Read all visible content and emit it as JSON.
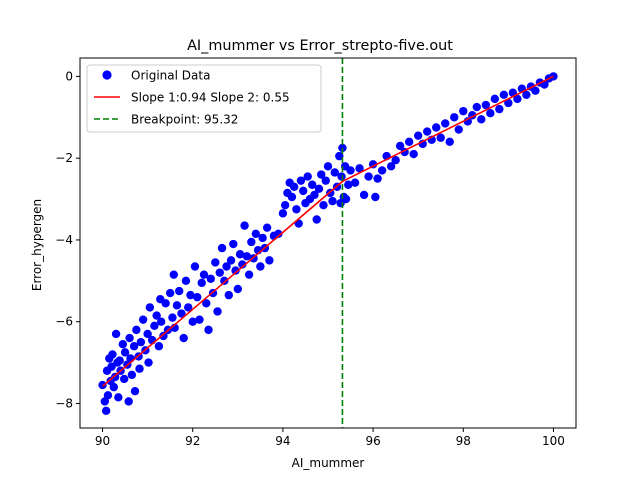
{
  "chart_data": {
    "type": "scatter",
    "title": "AI_mummer vs Error_strepto-five.out",
    "xlabel": "AI_mummer",
    "ylabel": "Error_hypergen",
    "xlim": [
      89.5,
      100.5
    ],
    "ylim": [
      -8.6,
      0.45
    ],
    "x_ticks": [
      90,
      92,
      94,
      96,
      98,
      100
    ],
    "x_tick_labels": [
      "90",
      "92",
      "94",
      "96",
      "98",
      "100"
    ],
    "y_ticks": [
      0,
      -2,
      -4,
      -6,
      -8
    ],
    "y_tick_labels": [
      "0",
      "−2",
      "−4",
      "−6",
      "−8"
    ],
    "grid": false,
    "legend_position": "top-left",
    "legend": [
      {
        "label": "Original Data",
        "kind": "marker",
        "color": "#0000ff"
      },
      {
        "label": "Slope 1:0.94 Slope 2: 0.55",
        "kind": "line",
        "color": "#ff0000"
      },
      {
        "label": "Breakpoint: 95.32",
        "kind": "dashed",
        "color": "#008000"
      }
    ],
    "scatter_color": "#0000ff",
    "scatter_points": [
      [
        90.0,
        -7.55
      ],
      [
        90.05,
        -7.95
      ],
      [
        90.08,
        -8.18
      ],
      [
        90.1,
        -7.2
      ],
      [
        90.12,
        -7.8
      ],
      [
        90.15,
        -6.9
      ],
      [
        90.18,
        -7.45
      ],
      [
        90.2,
        -7.1
      ],
      [
        90.22,
        -6.8
      ],
      [
        90.25,
        -7.6
      ],
      [
        90.28,
        -7.35
      ],
      [
        90.3,
        -6.3
      ],
      [
        90.33,
        -7.0
      ],
      [
        90.35,
        -7.85
      ],
      [
        90.38,
        -6.95
      ],
      [
        90.4,
        -7.2
      ],
      [
        90.45,
        -6.55
      ],
      [
        90.48,
        -7.4
      ],
      [
        90.5,
        -6.75
      ],
      [
        90.55,
        -7.05
      ],
      [
        90.58,
        -7.95
      ],
      [
        90.6,
        -6.4
      ],
      [
        90.62,
        -6.9
      ],
      [
        90.65,
        -7.3
      ],
      [
        90.7,
        -6.6
      ],
      [
        90.72,
        -7.7
      ],
      [
        90.75,
        -6.2
      ],
      [
        90.8,
        -6.85
      ],
      [
        90.82,
        -7.15
      ],
      [
        90.85,
        -6.5
      ],
      [
        90.9,
        -5.95
      ],
      [
        90.95,
        -6.7
      ],
      [
        91.0,
        -6.3
      ],
      [
        91.02,
        -7.0
      ],
      [
        91.05,
        -5.65
      ],
      [
        91.1,
        -6.45
      ],
      [
        91.15,
        -6.1
      ],
      [
        91.2,
        -5.85
      ],
      [
        91.25,
        -6.6
      ],
      [
        91.28,
        -5.45
      ],
      [
        91.3,
        -6.0
      ],
      [
        91.35,
        -6.35
      ],
      [
        91.4,
        -5.55
      ],
      [
        91.45,
        -6.2
      ],
      [
        91.5,
        -5.3
      ],
      [
        91.55,
        -5.9
      ],
      [
        91.58,
        -4.85
      ],
      [
        91.6,
        -6.15
      ],
      [
        91.65,
        -5.6
      ],
      [
        91.7,
        -5.25
      ],
      [
        91.75,
        -5.8
      ],
      [
        91.8,
        -6.4
      ],
      [
        91.85,
        -5.0
      ],
      [
        91.9,
        -5.65
      ],
      [
        91.95,
        -5.35
      ],
      [
        92.0,
        -6.0
      ],
      [
        92.05,
        -4.65
      ],
      [
        92.1,
        -5.4
      ],
      [
        92.15,
        -5.95
      ],
      [
        92.2,
        -5.05
      ],
      [
        92.25,
        -4.85
      ],
      [
        92.3,
        -5.55
      ],
      [
        92.35,
        -6.2
      ],
      [
        92.4,
        -4.95
      ],
      [
        92.45,
        -5.3
      ],
      [
        92.5,
        -4.55
      ],
      [
        92.55,
        -5.75
      ],
      [
        92.6,
        -4.8
      ],
      [
        92.65,
        -4.2
      ],
      [
        92.7,
        -5.0
      ],
      [
        92.75,
        -4.65
      ],
      [
        92.8,
        -5.35
      ],
      [
        92.85,
        -4.5
      ],
      [
        92.9,
        -4.1
      ],
      [
        92.95,
        -4.75
      ],
      [
        93.0,
        -5.2
      ],
      [
        93.05,
        -4.35
      ],
      [
        93.1,
        -4.6
      ],
      [
        93.15,
        -3.65
      ],
      [
        93.2,
        -4.4
      ],
      [
        93.25,
        -4.85
      ],
      [
        93.3,
        -4.05
      ],
      [
        93.35,
        -4.45
      ],
      [
        93.4,
        -3.85
      ],
      [
        93.45,
        -4.25
      ],
      [
        93.5,
        -4.65
      ],
      [
        93.55,
        -3.95
      ],
      [
        93.6,
        -4.2
      ],
      [
        93.65,
        -3.7
      ],
      [
        93.7,
        -4.5
      ],
      [
        93.8,
        -3.9
      ],
      [
        93.9,
        -3.85
      ],
      [
        94.0,
        -3.35
      ],
      [
        94.05,
        -3.15
      ],
      [
        94.1,
        -2.85
      ],
      [
        94.15,
        -2.6
      ],
      [
        94.2,
        -2.95
      ],
      [
        94.25,
        -2.7
      ],
      [
        94.3,
        -3.25
      ],
      [
        94.35,
        -3.6
      ],
      [
        94.4,
        -2.55
      ],
      [
        94.45,
        -2.8
      ],
      [
        94.5,
        -3.1
      ],
      [
        94.55,
        -2.45
      ],
      [
        94.6,
        -3.0
      ],
      [
        94.65,
        -2.65
      ],
      [
        94.7,
        -2.9
      ],
      [
        94.75,
        -3.5
      ],
      [
        94.8,
        -2.75
      ],
      [
        94.85,
        -2.4
      ],
      [
        94.9,
        -3.15
      ],
      [
        94.95,
        -2.55
      ],
      [
        95.0,
        -2.2
      ],
      [
        95.05,
        -2.85
      ],
      [
        95.1,
        -3.05
      ],
      [
        95.15,
        -2.35
      ],
      [
        95.2,
        -2.7
      ],
      [
        95.25,
        -1.95
      ],
      [
        95.28,
        -3.1
      ],
      [
        95.3,
        -2.45
      ],
      [
        95.32,
        -1.75
      ],
      [
        95.35,
        -2.95
      ],
      [
        95.38,
        -2.2
      ],
      [
        95.4,
        -3.0
      ],
      [
        95.45,
        -2.65
      ],
      [
        95.5,
        -2.3
      ],
      [
        95.6,
        -2.6
      ],
      [
        95.7,
        -2.25
      ],
      [
        95.8,
        -2.9
      ],
      [
        95.9,
        -2.45
      ],
      [
        96.0,
        -2.15
      ],
      [
        96.05,
        -2.95
      ],
      [
        96.1,
        -2.5
      ],
      [
        96.2,
        -2.3
      ],
      [
        96.3,
        -1.95
      ],
      [
        96.4,
        -2.2
      ],
      [
        96.5,
        -2.05
      ],
      [
        96.6,
        -1.7
      ],
      [
        96.7,
        -1.85
      ],
      [
        96.8,
        -1.6
      ],
      [
        96.9,
        -1.9
      ],
      [
        97.0,
        -1.45
      ],
      [
        97.1,
        -1.65
      ],
      [
        97.2,
        -1.35
      ],
      [
        97.3,
        -1.55
      ],
      [
        97.4,
        -1.25
      ],
      [
        97.5,
        -1.5
      ],
      [
        97.6,
        -1.15
      ],
      [
        97.7,
        -1.6
      ],
      [
        97.8,
        -1.0
      ],
      [
        97.9,
        -1.3
      ],
      [
        98.0,
        -0.85
      ],
      [
        98.1,
        -1.1
      ],
      [
        98.2,
        -0.95
      ],
      [
        98.3,
        -0.75
      ],
      [
        98.4,
        -1.05
      ],
      [
        98.5,
        -0.7
      ],
      [
        98.6,
        -0.9
      ],
      [
        98.7,
        -0.55
      ],
      [
        98.8,
        -0.8
      ],
      [
        98.9,
        -0.45
      ],
      [
        99.0,
        -0.65
      ],
      [
        99.1,
        -0.4
      ],
      [
        99.2,
        -0.55
      ],
      [
        99.3,
        -0.3
      ],
      [
        99.4,
        -0.45
      ],
      [
        99.5,
        -0.25
      ],
      [
        99.6,
        -0.35
      ],
      [
        99.7,
        -0.15
      ],
      [
        99.8,
        -0.2
      ],
      [
        99.9,
        -0.05
      ],
      [
        100.0,
        0.0
      ]
    ],
    "fit_color": "#ff0000",
    "fit_line": [
      [
        90.0,
        -7.58
      ],
      [
        95.32,
        -2.57
      ],
      [
        100.0,
        0.0
      ]
    ],
    "breakpoint": {
      "x": 95.32,
      "color": "#008000"
    }
  }
}
